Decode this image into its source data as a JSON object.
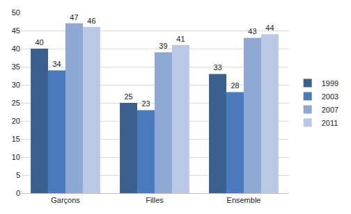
{
  "chart_data": {
    "type": "bar",
    "categories": [
      "Garçons",
      "Filles",
      "Ensemble"
    ],
    "series": [
      {
        "name": "1999",
        "color": "#3b5f8e",
        "values": [
          40,
          25,
          33
        ]
      },
      {
        "name": "2003",
        "color": "#4a7bbd",
        "values": [
          34,
          23,
          28
        ]
      },
      {
        "name": "2007",
        "color": "#8fa8d3",
        "values": [
          47,
          39,
          43
        ]
      },
      {
        "name": "2011",
        "color": "#b9c9e5",
        "values": [
          46,
          41,
          44
        ]
      }
    ],
    "ylim": [
      0,
      50
    ],
    "yticks": [
      0,
      5,
      10,
      15,
      20,
      25,
      30,
      35,
      40,
      45,
      50
    ],
    "grid": true,
    "legend": "right",
    "data_labels": true
  }
}
